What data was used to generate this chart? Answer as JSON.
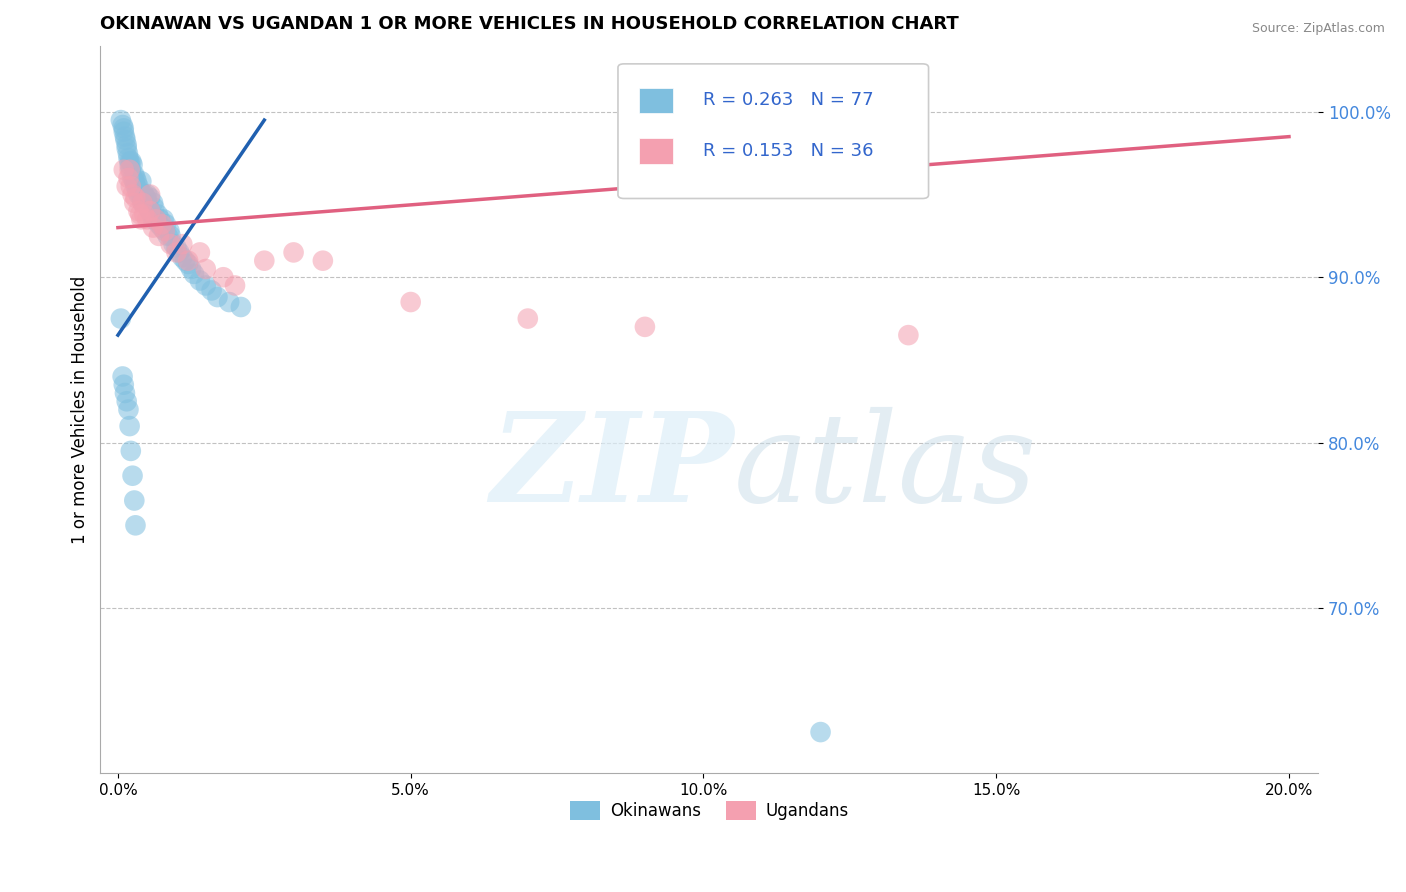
{
  "title": "OKINAWAN VS UGANDAN 1 OR MORE VEHICLES IN HOUSEHOLD CORRELATION CHART",
  "source": "Source: ZipAtlas.com",
  "ylabel": "1 or more Vehicles in Household",
  "xlim": [
    -0.3,
    20.5
  ],
  "ylim": [
    60.0,
    104.0
  ],
  "yticks": [
    70.0,
    80.0,
    90.0,
    100.0
  ],
  "xticks": [
    0.0,
    5.0,
    10.0,
    15.0,
    20.0
  ],
  "xtick_labels": [
    "0.0%",
    "5.0%",
    "10.0%",
    "15.0%",
    "20.0%"
  ],
  "ytick_labels": [
    "70.0%",
    "80.0%",
    "90.0%",
    "100.0%"
  ],
  "okinawan_color": "#7fbfdf",
  "ugandan_color": "#f4a0b0",
  "okinawan_line_color": "#2060b0",
  "ugandan_line_color": "#e06080",
  "R_okinawan": 0.263,
  "N_okinawan": 77,
  "R_ugandan": 0.153,
  "N_ugandan": 36,
  "legend_label_okinawan": "Okinawans",
  "legend_label_ugandan": "Ugandans",
  "ok_x": [
    0.05,
    0.08,
    0.1,
    0.1,
    0.12,
    0.13,
    0.15,
    0.15,
    0.17,
    0.18,
    0.2,
    0.2,
    0.22,
    0.23,
    0.25,
    0.25,
    0.28,
    0.28,
    0.3,
    0.3,
    0.32,
    0.33,
    0.35,
    0.35,
    0.38,
    0.4,
    0.4,
    0.42,
    0.45,
    0.45,
    0.48,
    0.5,
    0.5,
    0.52,
    0.55,
    0.55,
    0.58,
    0.6,
    0.6,
    0.62,
    0.65,
    0.68,
    0.7,
    0.72,
    0.75,
    0.78,
    0.8,
    0.82,
    0.85,
    0.88,
    0.9,
    0.95,
    1.0,
    1.05,
    1.1,
    1.15,
    1.2,
    1.25,
    1.3,
    1.4,
    1.5,
    1.6,
    1.7,
    1.9,
    2.1,
    0.05,
    0.08,
    0.1,
    0.12,
    0.15,
    0.18,
    0.2,
    0.22,
    0.25,
    0.28,
    0.3,
    12.0
  ],
  "ok_y": [
    99.5,
    99.2,
    98.8,
    99.0,
    98.5,
    98.3,
    98.0,
    97.8,
    97.5,
    97.2,
    97.0,
    96.8,
    96.5,
    97.0,
    96.8,
    96.0,
    96.2,
    95.8,
    95.5,
    96.0,
    95.8,
    95.2,
    95.5,
    95.0,
    95.2,
    95.8,
    94.8,
    94.5,
    95.0,
    94.5,
    94.8,
    94.5,
    95.0,
    94.2,
    94.8,
    94.0,
    93.8,
    94.5,
    93.5,
    94.2,
    93.5,
    93.8,
    93.2,
    93.5,
    93.0,
    93.5,
    92.8,
    93.2,
    92.5,
    92.8,
    92.5,
    92.0,
    91.8,
    91.5,
    91.2,
    91.0,
    90.8,
    90.5,
    90.2,
    89.8,
    89.5,
    89.2,
    88.8,
    88.5,
    88.2,
    87.5,
    84.0,
    83.5,
    83.0,
    82.5,
    82.0,
    81.0,
    79.5,
    78.0,
    76.5,
    75.0,
    62.5
  ],
  "ug_x": [
    0.1,
    0.15,
    0.18,
    0.2,
    0.25,
    0.28,
    0.3,
    0.35,
    0.4,
    0.42,
    0.45,
    0.5,
    0.55,
    0.6,
    0.65,
    0.7,
    0.8,
    0.9,
    1.0,
    1.2,
    1.5,
    1.8,
    2.0,
    2.5,
    3.0,
    3.5,
    5.0,
    7.0,
    9.0,
    13.5,
    0.22,
    0.38,
    0.55,
    0.75,
    1.1,
    1.4
  ],
  "ug_y": [
    96.5,
    95.5,
    96.0,
    96.5,
    95.0,
    94.5,
    94.8,
    94.0,
    93.5,
    94.5,
    93.8,
    93.5,
    95.0,
    93.0,
    93.5,
    92.5,
    92.8,
    92.0,
    91.5,
    91.0,
    90.5,
    90.0,
    89.5,
    91.0,
    91.5,
    91.0,
    88.5,
    87.5,
    87.0,
    86.5,
    95.5,
    93.8,
    94.0,
    93.2,
    92.0,
    91.5
  ],
  "ok_trend_x0": 0.0,
  "ok_trend_y0": 86.5,
  "ok_trend_x1": 2.5,
  "ok_trend_y1": 99.5,
  "ug_trend_x0": 0.0,
  "ug_trend_y0": 93.0,
  "ug_trend_x1": 20.0,
  "ug_trend_y1": 98.5
}
